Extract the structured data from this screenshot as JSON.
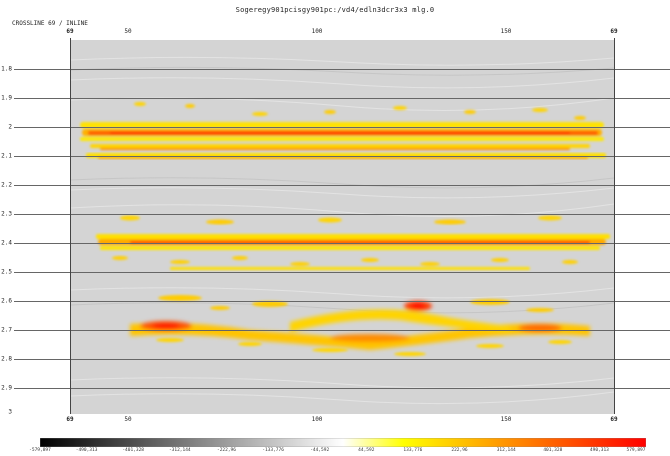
{
  "title": "Sogeregy901pcisgy901pc:/vd4/edln3dcr3x3  mlg.0",
  "axis_label": "CROSSLINE 69   / INLINE",
  "x_axis": {
    "edge_left": "69",
    "edge_right": "69",
    "ticks": [
      "50",
      "100",
      "150"
    ]
  },
  "y_axis": {
    "ticks": [
      "1.8",
      "1.9",
      "2",
      "2.1",
      "2.2",
      "2.3",
      "2.4",
      "2.5",
      "2.6",
      "2.7",
      "2.8",
      "2.9",
      "3"
    ]
  },
  "colorbar": {
    "ticks": [
      "-579,897",
      "-490,313",
      "-401,328",
      "-312,144",
      "-222,96",
      "-133,776",
      "-44,592",
      "44,592",
      "133,776",
      "222,96",
      "312,144",
      "401,328",
      "490,313",
      "579,897"
    ],
    "colors": {
      "negative_end": "#000000",
      "neutral": "#ffffff",
      "yellow": "#ffff00",
      "positive_end": "#ff0000"
    }
  }
}
